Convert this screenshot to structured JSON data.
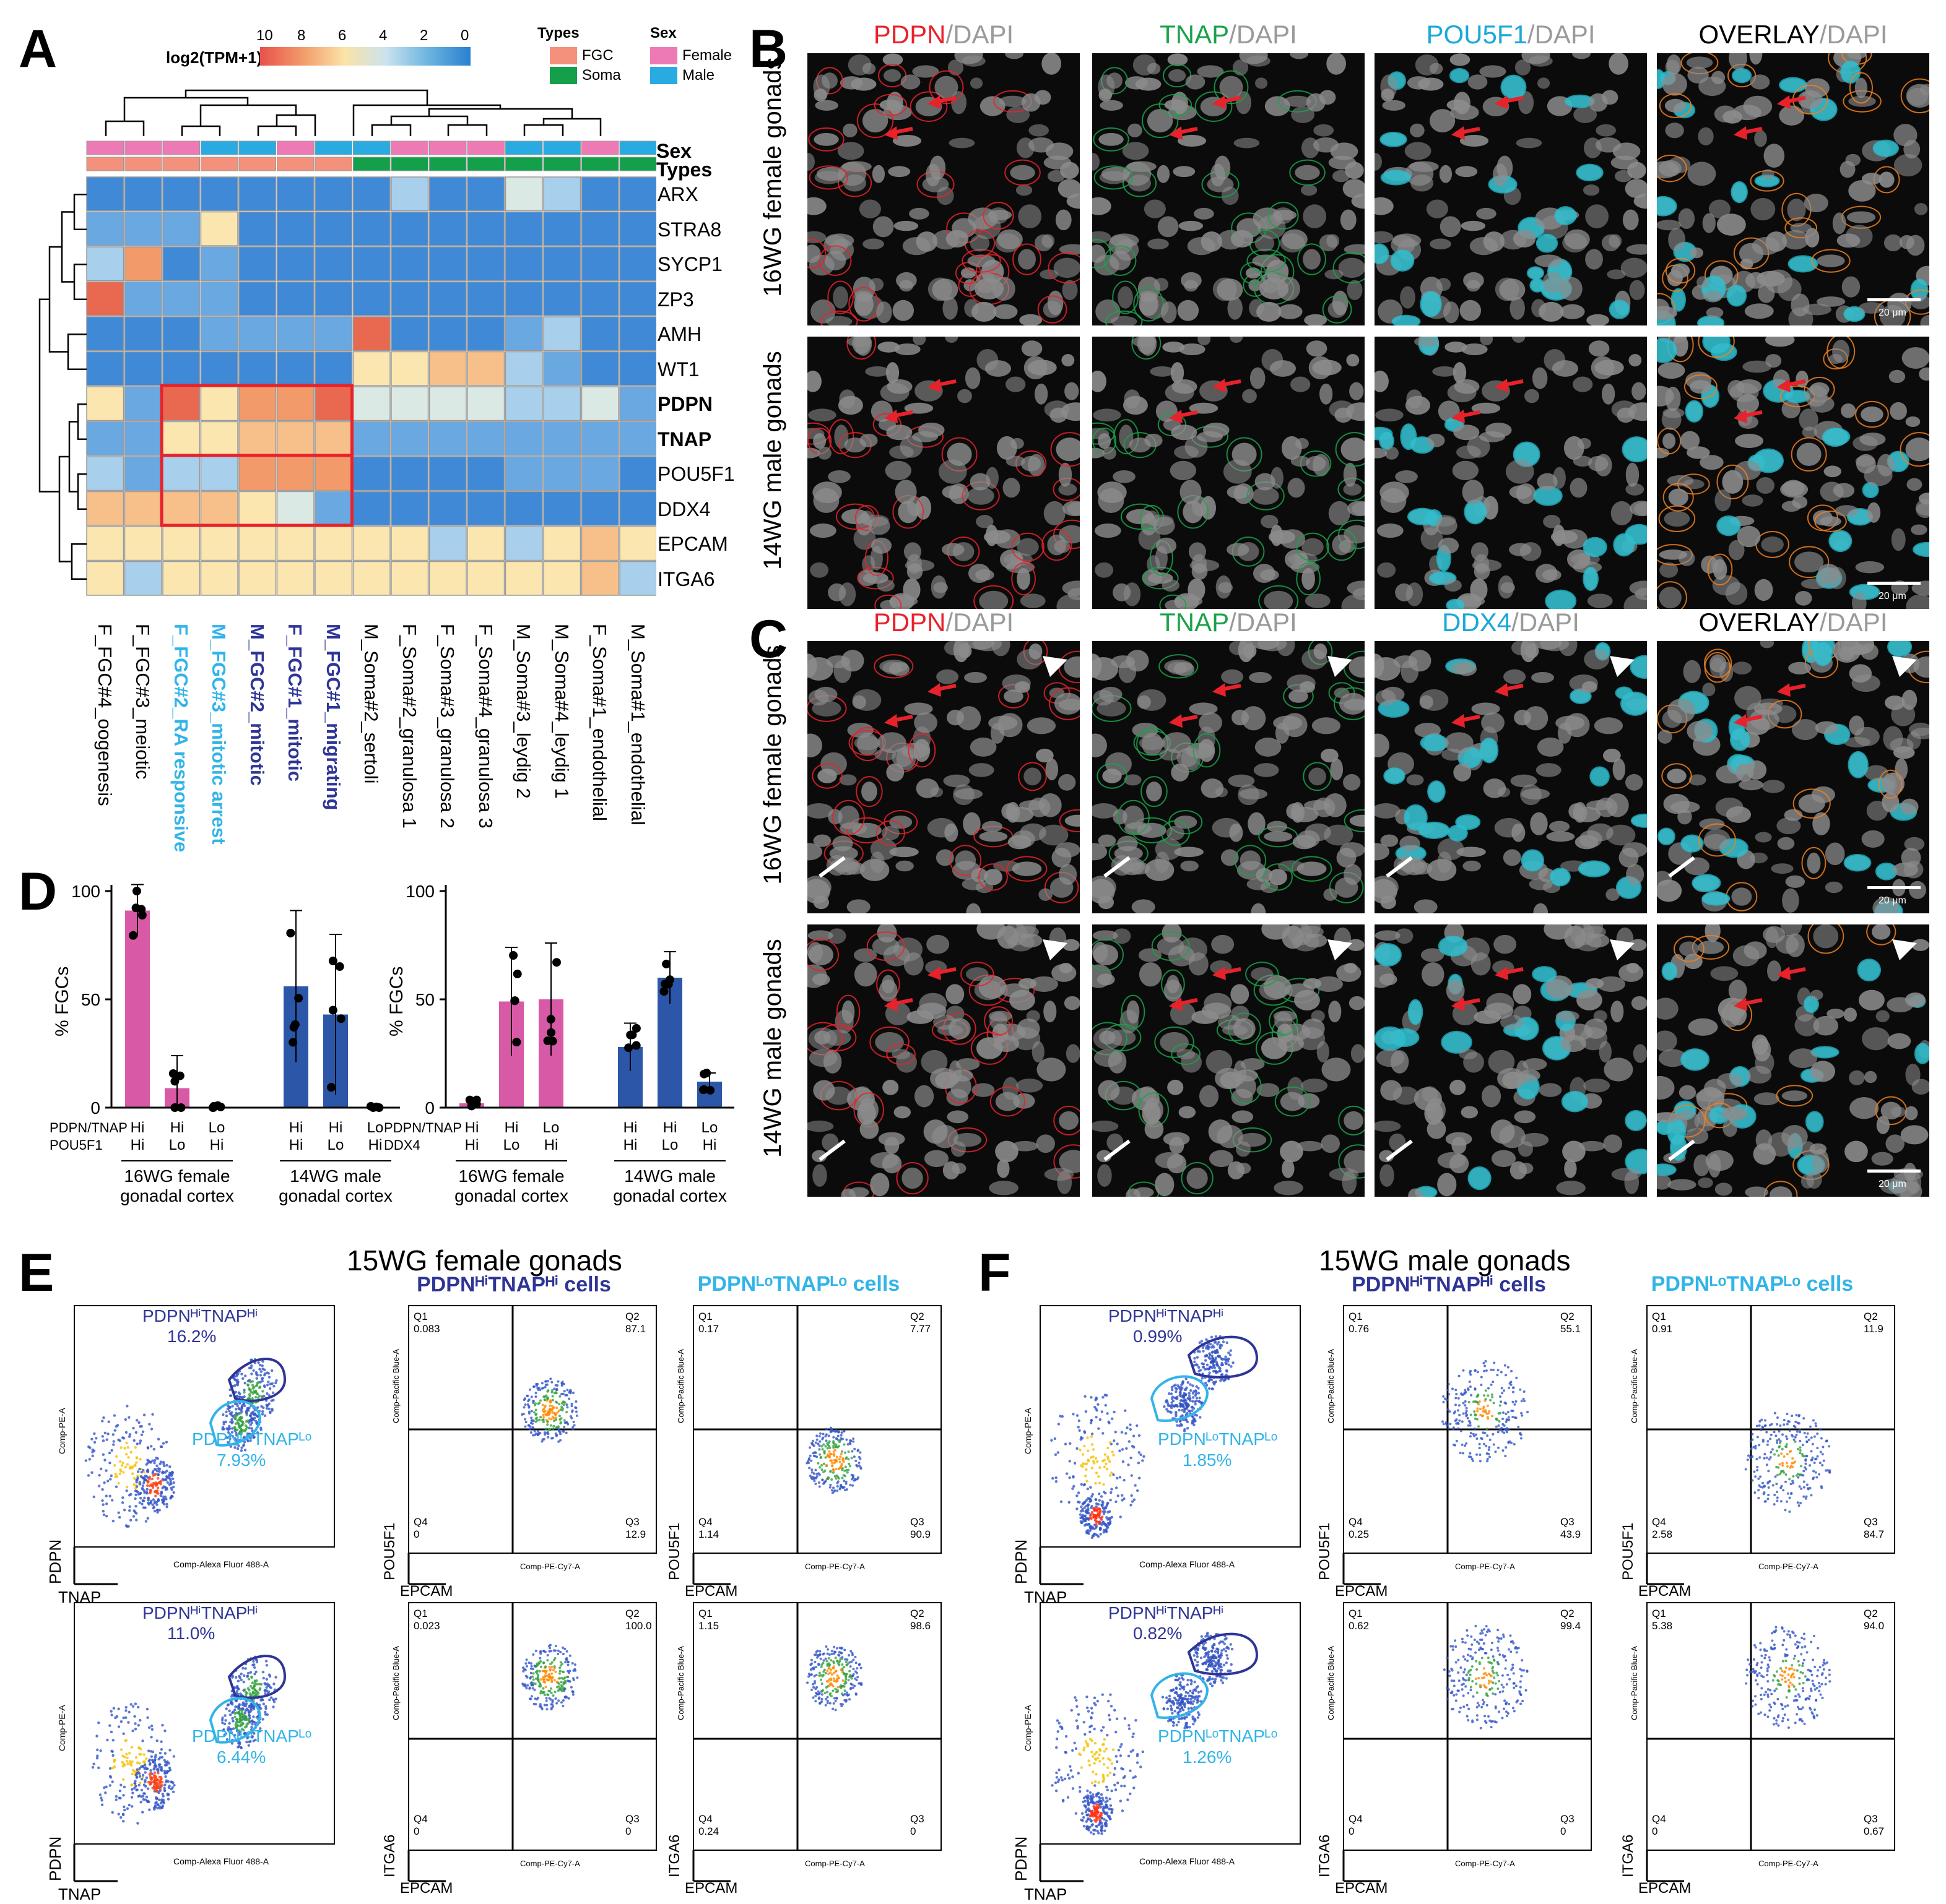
{
  "panels": {
    "A": "A",
    "B": "B",
    "C": "C",
    "D": "D",
    "E": "E",
    "F": "F"
  },
  "colors": {
    "red": "#e8222b",
    "green": "#1aa24a",
    "cyan": "#1aa8d8",
    "navy": "#2f3596",
    "pink": "#d85aa6",
    "blue": "#2c57a8",
    "lightcyan": "#31b4e8"
  },
  "heatmap": {
    "scale_title": "log2(TPM+1)",
    "scale_ticks": [
      "10",
      "8",
      "6",
      "4",
      "2",
      "0"
    ],
    "legend_types_title": "Types",
    "legend_types": [
      "FGC",
      "Soma"
    ],
    "legend_sex_title": "Sex",
    "legend_sex": [
      "Female",
      "Male"
    ],
    "annot_labels": [
      "Sex",
      "Types"
    ],
    "genes": [
      "ARX",
      "STRA8",
      "SYCP1",
      "ZP3",
      "AMH",
      "WT1",
      "PDPN",
      "TNAP",
      "POU5F1",
      "DDX4",
      "EPCAM",
      "ITGA6"
    ],
    "samples": [
      "F_FGC#4_oogenesis",
      "F_FGC#3_meiotic",
      "F_FGC#2_RA responsive",
      "M_FGC#3_mitotic arrest",
      "M_FGC#2_mitotic",
      "F_FGC#1_mitotic",
      "M_FGC#1_migrating",
      "M_Soma#2_sertoli",
      "F_Soma#2_granulosa 1",
      "F_Soma#3_granulosa 2",
      "F_Soma#4_granulosa 3",
      "M_Soma#3_leydig 2",
      "M_Soma#4_leydig 1",
      "F_Soma#1_endothelial",
      "M_Soma#1_endothelial"
    ]
  },
  "imaging": {
    "B": {
      "titles": [
        {
          "marker": "PDPN",
          "dapi": "/DAPI"
        },
        {
          "marker": "TNAP",
          "dapi": "/DAPI"
        },
        {
          "marker": "POU5F1",
          "dapi": "/DAPI"
        },
        {
          "marker": "OVERLAY",
          "dapi": "/DAPI"
        }
      ],
      "rows": [
        "16WG female gonads",
        "14WG male gonads"
      ]
    },
    "C": {
      "titles": [
        {
          "marker": "PDPN",
          "dapi": "/DAPI"
        },
        {
          "marker": "TNAP",
          "dapi": "/DAPI"
        },
        {
          "marker": "DDX4",
          "dapi": "/DAPI"
        },
        {
          "marker": "OVERLAY",
          "dapi": "/DAPI"
        }
      ],
      "rows": [
        "16WG female gonads",
        "14WG male gonads"
      ]
    },
    "scale_bar": "20 μm"
  },
  "chart_data": [
    {
      "type": "bar",
      "title": "% FGCs (PDPN/TNAP vs POU5F1)",
      "ylabel": "% FGCs",
      "ylim": [
        0,
        100
      ],
      "yticks": [
        "0",
        "50",
        "100"
      ],
      "row_label_1": "PDPN/TNAP",
      "row_label_2": "POU5F1",
      "categories": [
        [
          "Hi",
          "Hi"
        ],
        [
          "Hi",
          "Lo"
        ],
        [
          "Lo",
          "Hi"
        ],
        [
          "Hi",
          "Hi"
        ],
        [
          "Hi",
          "Lo"
        ],
        [
          "Lo",
          "Hi"
        ]
      ],
      "groups": [
        "16WG female gonadal cortex",
        "14WG male gonadal cortex"
      ],
      "values": [
        91,
        9,
        0,
        56,
        43,
        0
      ],
      "errors": [
        12,
        15,
        1,
        35,
        37,
        1
      ]
    },
    {
      "type": "bar",
      "title": "% FGCs (PDPN/TNAP vs DDX4)",
      "ylabel": "% FGCs",
      "ylim": [
        0,
        100
      ],
      "yticks": [
        "0",
        "50",
        "100"
      ],
      "row_label_1": "PDPN/TNAP",
      "row_label_2": "DDX4",
      "categories": [
        [
          "Hi",
          "Hi"
        ],
        [
          "Hi",
          "Lo"
        ],
        [
          "Lo",
          "Hi"
        ],
        [
          "Hi",
          "Hi"
        ],
        [
          "Hi",
          "Lo"
        ],
        [
          "Lo",
          "Hi"
        ]
      ],
      "groups": [
        "16WG female gonadal cortex",
        "14WG male gonadal cortex"
      ],
      "values": [
        2,
        49,
        50,
        28,
        60,
        12
      ],
      "errors": [
        2,
        25,
        26,
        11,
        12,
        4
      ]
    }
  ],
  "flow": {
    "E_title": "15WG female gonads",
    "F_title": "15WG male gonads",
    "hi_title": "PDPNᴴⁱTNAPᴴⁱ cells",
    "lo_title": "PDPNᴸᵒTNAPᴸᵒ cells",
    "hi_gate": "PDPNᴴⁱTNAPᴴⁱ",
    "lo_gate": "PDPNᴸᵒTNAPᴸᵒ",
    "axis_pdpn": "PDPN",
    "axis_tnap": "TNAP",
    "axis_epcam": "EPCAM",
    "axis_pou5f1": "POU5F1",
    "axis_itga6": "ITGA6",
    "comp_pe": "Comp-PE-A",
    "comp_af488": "Comp-Alexa Fluor 488-A",
    "comp_pb": "Comp-Pacific Blue-A",
    "comp_pecy7": "Comp-PE-Cy7-A",
    "E": {
      "gate_pcts": [
        [
          "16.2%",
          "7.93%"
        ],
        [
          "11.0%",
          "6.44%"
        ]
      ],
      "quads": [
        {
          "hi": {
            "Q1": "0.083",
            "Q2": "87.1",
            "Q3": "12.9",
            "Q4": "0"
          },
          "lo": {
            "Q1": "0.17",
            "Q2": "7.77",
            "Q3": "90.9",
            "Q4": "1.14"
          }
        },
        {
          "hi": {
            "Q1": "0.023",
            "Q2": "100.0",
            "Q3": "0",
            "Q4": "0"
          },
          "lo": {
            "Q1": "1.15",
            "Q2": "98.6",
            "Q3": "0",
            "Q4": "0.24"
          }
        }
      ]
    },
    "F": {
      "gate_pcts": [
        [
          "0.99%",
          "1.85%"
        ],
        [
          "0.82%",
          "1.26%"
        ]
      ],
      "quads": [
        {
          "hi": {
            "Q1": "0.76",
            "Q2": "55.1",
            "Q3": "43.9",
            "Q4": "0.25"
          },
          "lo": {
            "Q1": "0.91",
            "Q2": "11.9",
            "Q3": "84.7",
            "Q4": "2.58"
          }
        },
        {
          "hi": {
            "Q1": "0.62",
            "Q2": "99.4",
            "Q3": "0",
            "Q4": "0"
          },
          "lo": {
            "Q1": "5.38",
            "Q2": "94.0",
            "Q3": "0.67",
            "Q4": "0"
          }
        }
      ]
    }
  }
}
